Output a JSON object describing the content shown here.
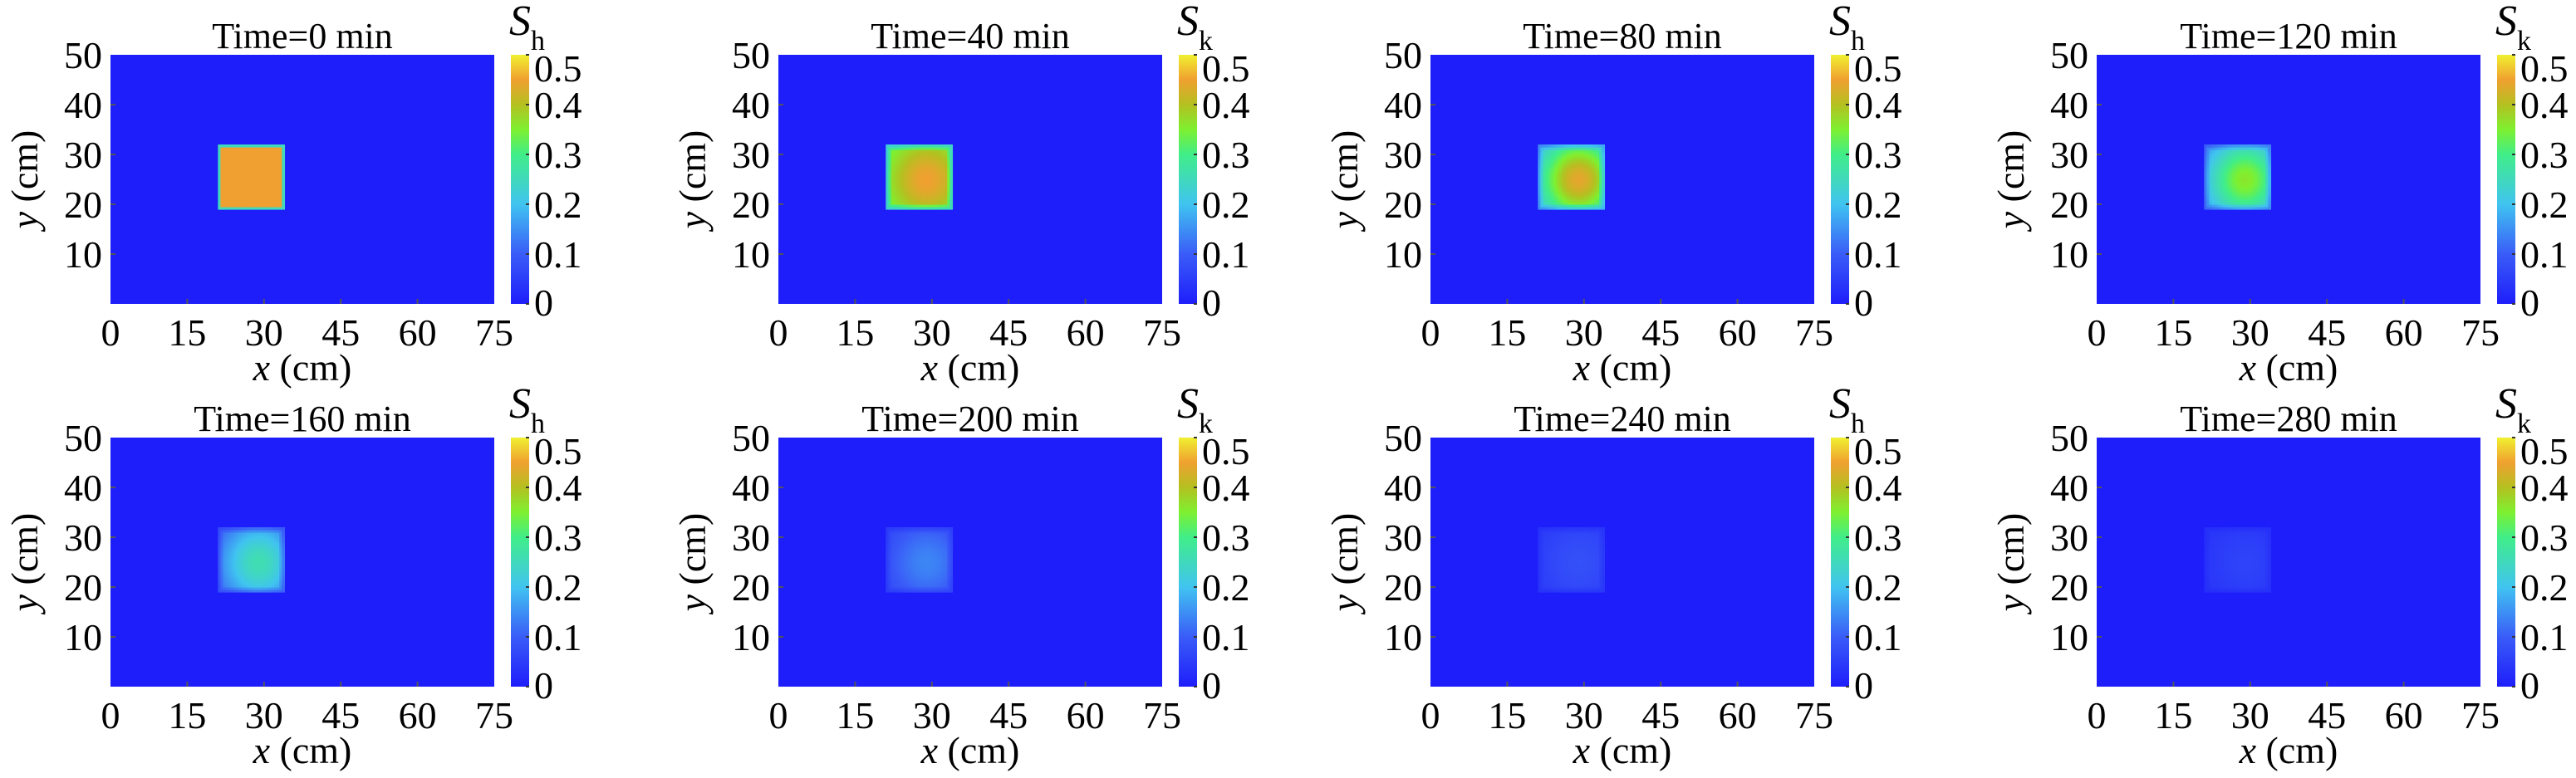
{
  "chart_data": [
    {
      "type": "heatmap",
      "title": "Time=0 min",
      "colorbar_label": {
        "symbol": "S",
        "subscript": "h"
      },
      "center_value": 0.45,
      "edge_value": 0.45,
      "smooth": false
    },
    {
      "type": "heatmap",
      "title": "Time=40 min",
      "colorbar_label": {
        "symbol": "S",
        "subscript": "k"
      },
      "center_value": 0.45,
      "edge_value": 0.3,
      "smooth": true
    },
    {
      "type": "heatmap",
      "title": "Time=80 min",
      "colorbar_label": {
        "symbol": "S",
        "subscript": "h"
      },
      "center_value": 0.44,
      "edge_value": 0.15,
      "smooth": true
    },
    {
      "type": "heatmap",
      "title": "Time=120 min",
      "colorbar_label": {
        "symbol": "S",
        "subscript": "k"
      },
      "center_value": 0.36,
      "edge_value": 0.1,
      "smooth": true
    },
    {
      "type": "heatmap",
      "title": "Time=160 min",
      "colorbar_label": {
        "symbol": "S",
        "subscript": "h"
      },
      "center_value": 0.26,
      "edge_value": 0.07,
      "smooth": true
    },
    {
      "type": "heatmap",
      "title": "Time=200 min",
      "colorbar_label": {
        "symbol": "S",
        "subscript": "k"
      },
      "center_value": 0.14,
      "edge_value": 0.05,
      "smooth": true
    },
    {
      "type": "heatmap",
      "title": "Time=240 min",
      "colorbar_label": {
        "symbol": "S",
        "subscript": "h"
      },
      "center_value": 0.08,
      "edge_value": 0.04,
      "smooth": true
    },
    {
      "type": "heatmap",
      "title": "Time=280 min",
      "colorbar_label": {
        "symbol": "S",
        "subscript": "k"
      },
      "center_value": 0.06,
      "edge_value": 0.03,
      "smooth": true
    }
  ],
  "shared": {
    "xlabel": {
      "var": "x",
      "unit": " (cm)"
    },
    "ylabel": {
      "var": "y",
      "unit": " (cm)"
    },
    "xlim": [
      0,
      75
    ],
    "ylim": [
      0,
      50
    ],
    "xticks": [
      "0",
      "15",
      "30",
      "45",
      "60",
      "75"
    ],
    "yticks": [
      "10",
      "20",
      "30",
      "40",
      "50"
    ],
    "colorbar_range": [
      0,
      0.5
    ],
    "colorbar_ticks": [
      "0",
      "0.1",
      "0.2",
      "0.3",
      "0.4",
      "0.5"
    ],
    "source_region_cm": {
      "x": [
        21,
        34
      ],
      "y": [
        19,
        32
      ]
    },
    "peak_location_cm": {
      "x": 29,
      "y": 25
    },
    "colormap": [
      "#1e1efa",
      "#3a5cf8",
      "#40c4f0",
      "#40ee88",
      "#7ef030",
      "#b4c020",
      "#f0a030",
      "#f0f030"
    ]
  }
}
